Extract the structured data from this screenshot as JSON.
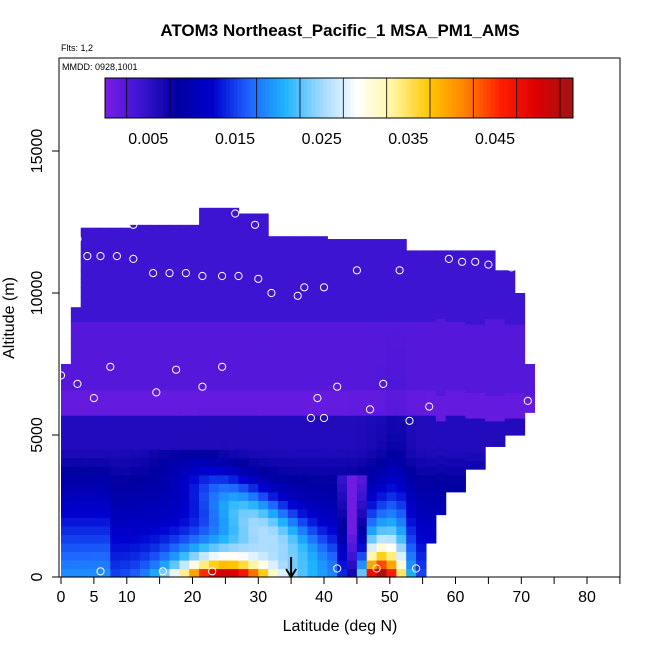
{
  "chart_data": {
    "type": "heatmap",
    "title": "ATOM3 Northeast_Pacific_1 MSA_PM1_AMS",
    "flights_label": "Flts: 1,2",
    "dates_label": "MMDD: 0928,1001",
    "xlabel": "Latitude (deg N)",
    "ylabel": "Altitude (m)",
    "xlim": [
      0,
      85
    ],
    "ylim": [
      0,
      17500
    ],
    "x_ticks": [
      0,
      5,
      10,
      20,
      30,
      40,
      50,
      60,
      70,
      80
    ],
    "y_ticks": [
      0,
      5000,
      10000,
      15000
    ],
    "y_tick_labels": [
      "0",
      "5000",
      "10000",
      "15000"
    ],
    "colorbar": {
      "min": 0.0,
      "max": 0.054,
      "tick_values": [
        0.005,
        0.015,
        0.025,
        0.035,
        0.045
      ],
      "tick_labels": [
        "0.005",
        "0.015",
        "0.025",
        "0.035",
        "0.045"
      ],
      "colors": [
        "#7a1ee6",
        "#3c14d2",
        "#0000a0",
        "#0000d0",
        "#1e64ff",
        "#1eb4ff",
        "#a0d8ff",
        "#ffffff",
        "#fff5a0",
        "#ffc800",
        "#ff8200",
        "#ff1e00",
        "#dc0000",
        "#a01414"
      ]
    },
    "annotation": "arrow at latitude 35 deg N pointing to surface",
    "arrow_lat": 35,
    "samples": [
      {
        "lat": 0,
        "alt": 7100
      },
      {
        "lat": 2.5,
        "alt": 11900
      },
      {
        "lat": 2.5,
        "alt": 6800
      },
      {
        "lat": 4,
        "alt": 11300
      },
      {
        "lat": 5,
        "alt": 6300
      },
      {
        "lat": 6,
        "alt": 11300
      },
      {
        "lat": 7.5,
        "alt": 7400
      },
      {
        "lat": 8.5,
        "alt": 11300
      },
      {
        "lat": 11,
        "alt": 11200
      },
      {
        "lat": 11,
        "alt": 12400
      },
      {
        "lat": 14,
        "alt": 10700
      },
      {
        "lat": 14.5,
        "alt": 6500
      },
      {
        "lat": 16.5,
        "alt": 10700
      },
      {
        "lat": 17.5,
        "alt": 7300
      },
      {
        "lat": 19,
        "alt": 10700
      },
      {
        "lat": 20,
        "alt": 12600
      },
      {
        "lat": 21.5,
        "alt": 10600
      },
      {
        "lat": 21.5,
        "alt": 6700
      },
      {
        "lat": 24.5,
        "alt": 10600
      },
      {
        "lat": 24.5,
        "alt": 7400
      },
      {
        "lat": 26.5,
        "alt": 12800
      },
      {
        "lat": 27,
        "alt": 10600
      },
      {
        "lat": 29.5,
        "alt": 12400
      },
      {
        "lat": 30,
        "alt": 10500
      },
      {
        "lat": 32,
        "alt": 10000
      },
      {
        "lat": 36,
        "alt": 9900
      },
      {
        "lat": 37,
        "alt": 10200
      },
      {
        "lat": 38,
        "alt": 5600
      },
      {
        "lat": 39,
        "alt": 6300
      },
      {
        "lat": 40,
        "alt": 10200
      },
      {
        "lat": 40,
        "alt": 5600
      },
      {
        "lat": 42,
        "alt": 6700
      },
      {
        "lat": 45,
        "alt": 10800
      },
      {
        "lat": 47,
        "alt": 5900
      },
      {
        "lat": 49,
        "alt": 6800
      },
      {
        "lat": 51.5,
        "alt": 10800
      },
      {
        "lat": 53,
        "alt": 5500
      },
      {
        "lat": 56,
        "alt": 6000
      },
      {
        "lat": 59,
        "alt": 11200
      },
      {
        "lat": 61,
        "alt": 11100
      },
      {
        "lat": 63,
        "alt": 11100
      },
      {
        "lat": 65,
        "alt": 11000
      },
      {
        "lat": 68.5,
        "alt": 10900
      },
      {
        "lat": 71,
        "alt": 6200
      },
      {
        "lat": 6,
        "alt": 200
      },
      {
        "lat": 15.5,
        "alt": 200
      },
      {
        "lat": 23,
        "alt": 200
      },
      {
        "lat": 42,
        "alt": 300
      },
      {
        "lat": 48,
        "alt": 300
      },
      {
        "lat": 54,
        "alt": 300
      }
    ]
  }
}
